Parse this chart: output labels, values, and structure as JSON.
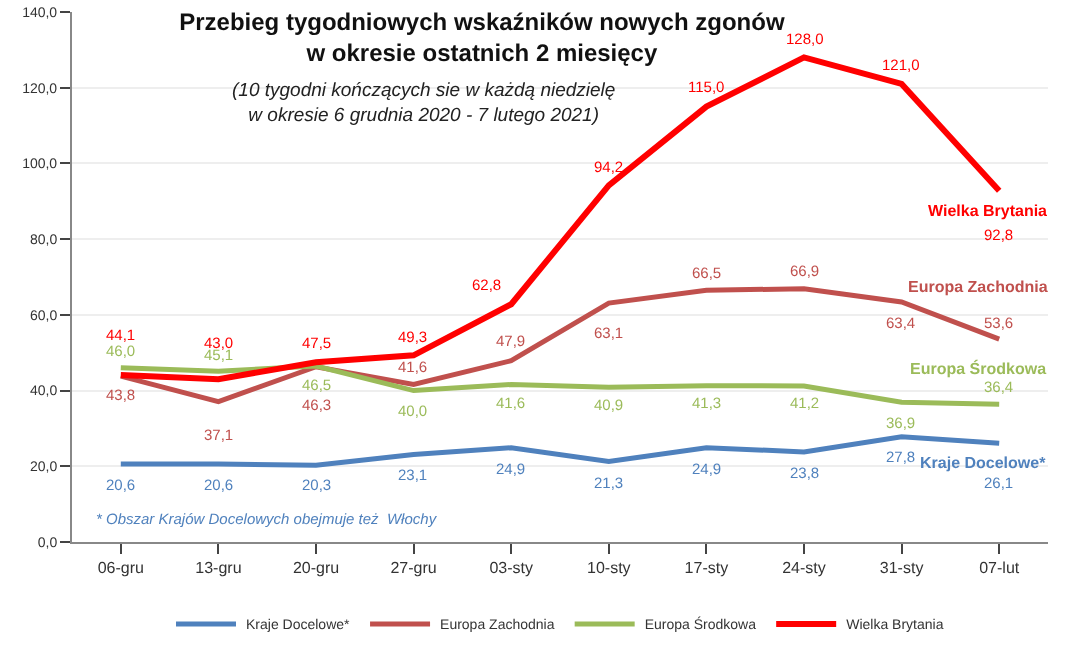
{
  "chart_data": {
    "type": "line",
    "title": "Przebieg tygodniowych wskaźników nowych zgonów w okresie ostatnich 2 miesięcy",
    "subtitle": "(10 tygodni kończących sie w każdą niedzielę w okresie 6 grudnia 2020 - 7 lutego 2021)",
    "annotations": [
      "* Obszar Krajów Docelowych obejmuje też  Włochy"
    ],
    "categories": [
      "06-gru",
      "13-gru",
      "20-gru",
      "27-gru",
      "03-sty",
      "10-sty",
      "17-sty",
      "24-sty",
      "31-sty",
      "07-lut"
    ],
    "series": [
      {
        "name": "Kraje Docelowe*",
        "color": "#4f81bd",
        "values": [
          20.6,
          20.6,
          20.3,
          23.1,
          24.9,
          21.3,
          24.9,
          23.8,
          27.8,
          26.1
        ],
        "value_labels": [
          "20,6",
          "20,6",
          "20,3",
          "23,1",
          "24,9",
          "21,3",
          "24,9",
          "23,8",
          "27,8",
          "26,1"
        ]
      },
      {
        "name": "Europa Zachodnia",
        "color": "#c0504d",
        "values": [
          43.8,
          37.1,
          46.3,
          41.6,
          47.9,
          63.1,
          66.5,
          66.9,
          63.4,
          53.6
        ],
        "value_labels": [
          "43,8",
          "37,1",
          "46,3",
          "41,6",
          "47,9",
          "63,1",
          "66,5",
          "66,9",
          "63,4",
          "53,6"
        ]
      },
      {
        "name": "Europa Środkowa",
        "color": "#9bbb59",
        "values": [
          46.0,
          45.1,
          46.5,
          40.0,
          41.6,
          40.9,
          41.3,
          41.2,
          36.9,
          36.4
        ],
        "value_labels": [
          "46,0",
          "45,1",
          "46,5",
          "40,0",
          "41,6",
          "40,9",
          "41,3",
          "41,2",
          "36,9",
          "36,4"
        ]
      },
      {
        "name": "Wielka Brytania",
        "color": "#ff0000",
        "values": [
          44.1,
          43.0,
          47.5,
          49.3,
          62.8,
          94.2,
          115.0,
          128.0,
          121.0,
          92.8
        ],
        "value_labels": [
          "44,1",
          "43,0",
          "47,5",
          "49,3",
          "62,8",
          "94,2",
          "115,0",
          "128,0",
          "121,0",
          "92,8"
        ]
      }
    ],
    "ylim": [
      0,
      140
    ],
    "yticks": [
      {
        "value": 0,
        "label": "0,0"
      },
      {
        "value": 20,
        "label": "20,0"
      },
      {
        "value": 40,
        "label": "40,0"
      },
      {
        "value": 60,
        "label": "60,0"
      },
      {
        "value": 80,
        "label": "80,0"
      },
      {
        "value": 100,
        "label": "100,0"
      },
      {
        "value": 120,
        "label": "120,0"
      },
      {
        "value": 140,
        "label": "140,0"
      }
    ],
    "grid": "y",
    "legend": "bottom",
    "marker": "none",
    "line_style": "solid"
  }
}
